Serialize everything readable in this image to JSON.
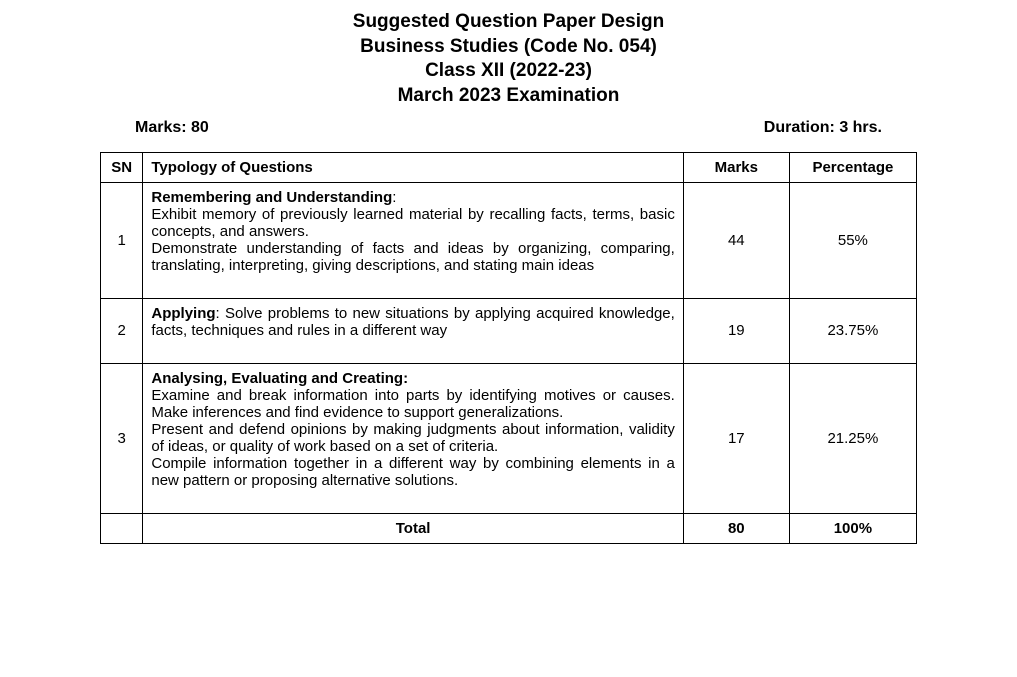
{
  "header": {
    "line1": "Suggested Question Paper Design",
    "line2": "Business Studies (Code No. 054)",
    "line3": "Class XII (2022-23)",
    "line4": "March 2023 Examination"
  },
  "meta": {
    "marks_label": "Marks: 80",
    "duration_label": "Duration: 3 hrs."
  },
  "table": {
    "headers": {
      "sn": "SN",
      "typology": "Typology of Questions",
      "marks": "Marks",
      "percentage": "Percentage"
    },
    "rows": [
      {
        "sn": "1",
        "typology_bold": "Remembering and Understanding",
        "typology_text": ":\nExhibit memory of previously learned material by recalling facts, terms, basic concepts, and answers.\nDemonstrate understanding of facts and ideas by organizing, comparing, translating, interpreting, giving descriptions, and stating main ideas",
        "marks": "44",
        "percentage": "55%"
      },
      {
        "sn": "2",
        "typology_bold": "Applying",
        "typology_text": ": Solve problems to new situations by applying acquired knowledge, facts, techniques and rules in a different way",
        "marks": "19",
        "percentage": "23.75%"
      },
      {
        "sn": "3",
        "typology_bold": "Analysing, Evaluating and Creating:",
        "typology_text": "\nExamine and break information into parts by identifying motives or causes. Make inferences and find evidence to support generalizations.\nPresent and defend opinions by making judgments about information, validity of ideas, or quality of work based on a set of criteria.\nCompile information together in a different way by combining elements in a new pattern or proposing alternative solutions.",
        "marks": "17",
        "percentage": "21.25%"
      }
    ],
    "total": {
      "label": "Total",
      "marks": "80",
      "percentage": "100%"
    }
  },
  "styling": {
    "background_color": "#ffffff",
    "text_color": "#000000",
    "border_color": "#000000",
    "header_fontsize": 19,
    "meta_fontsize": 16,
    "table_fontsize": 15,
    "font_family": "Arial"
  }
}
